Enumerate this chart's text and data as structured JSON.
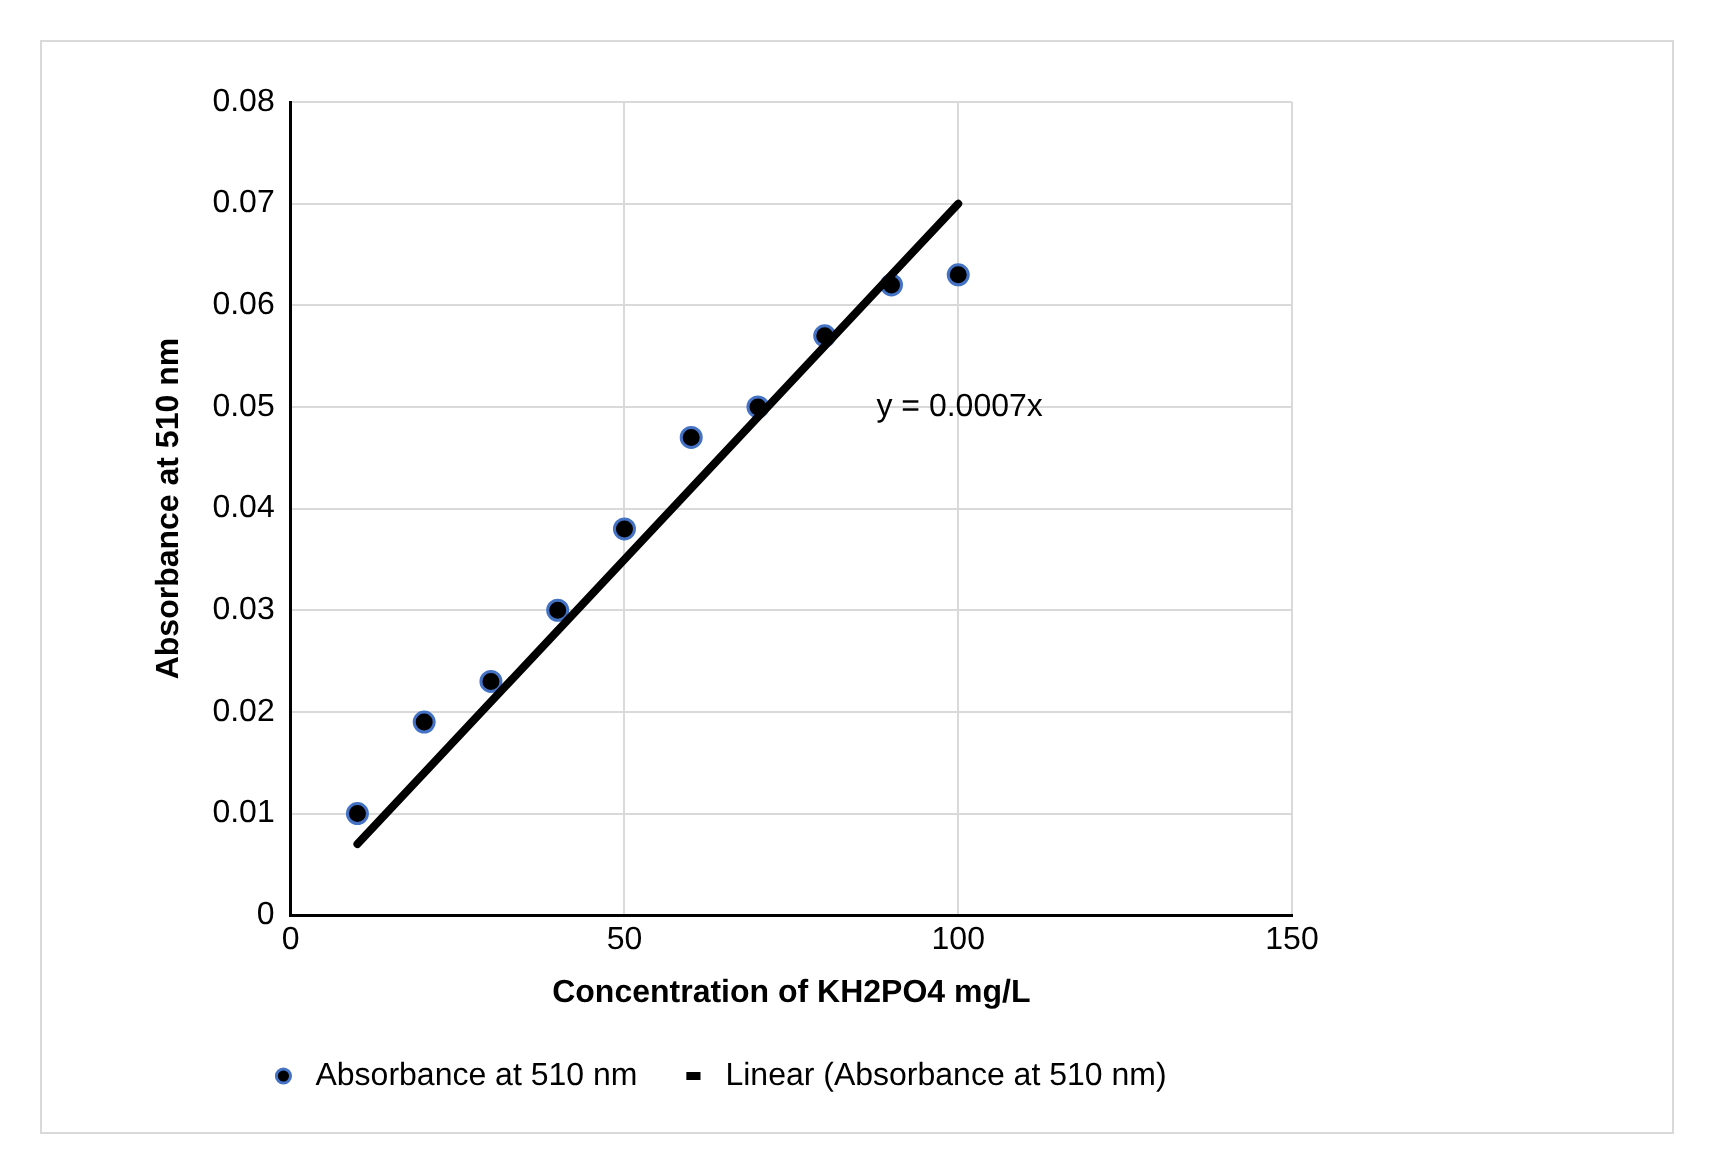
{
  "chart_data": {
    "type": "scatter",
    "xlabel": "Concentration of KH2PO4 mg/L",
    "ylabel": "Absorbance at 510 nm",
    "series": [
      {
        "name": "Absorbance at 510 nm",
        "marker": "circle",
        "color": "#000000",
        "x": [
          10,
          20,
          30,
          40,
          50,
          60,
          70,
          80,
          90,
          100
        ],
        "values": [
          0.01,
          0.019,
          0.023,
          0.03,
          0.038,
          0.047,
          0.05,
          0.057,
          0.062,
          0.063
        ]
      },
      {
        "name": "Linear (Absorbance at 510 nm)",
        "type": "line",
        "color": "#000000",
        "x": [
          10,
          100
        ],
        "values": [
          0.007,
          0.07
        ]
      }
    ],
    "annotations": [
      "y = 0.0007x"
    ],
    "xlim": [
      0,
      150
    ],
    "xticks": [
      0,
      50,
      100,
      150
    ],
    "ylim": [
      0,
      0.08
    ],
    "yticks": [
      0,
      0.01,
      0.02,
      0.03,
      0.04,
      0.05,
      0.06,
      0.07,
      0.08
    ],
    "grid": true,
    "legend": "bottom"
  }
}
